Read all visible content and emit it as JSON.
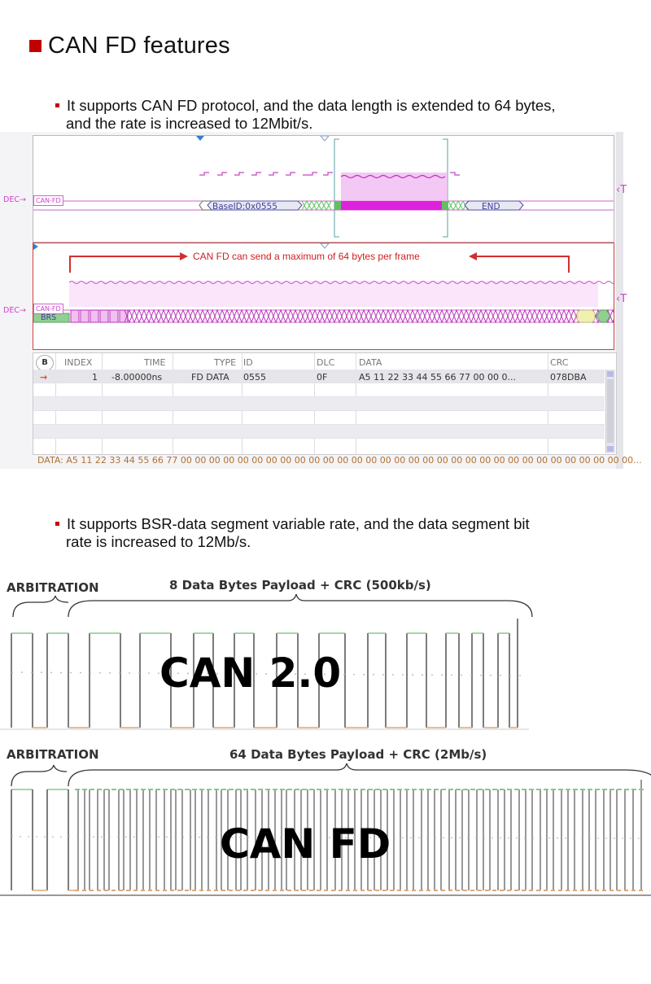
{
  "heading": {
    "title": "CAN FD features"
  },
  "bullets": [
    {
      "line1": "It supports CAN FD protocol, and the data length is extended to 64 bytes,",
      "line2": "and the rate is increased to 12Mbit/s."
    },
    {
      "line1": "It supports BSR-data segment variable rate, and the data segment bit",
      "line2": "rate is increased to 12Mb/s."
    }
  ],
  "scope": {
    "dec_label": "DEC",
    "bus_tag": "CAN-FD",
    "trigger_marker": "T",
    "panel1": {
      "base_id": "BaseID:0x0555",
      "end_label": "END"
    },
    "panel2": {
      "annotation": "CAN FD can send a maximum of 64 bytes per frame",
      "brs_label": "BRS"
    },
    "table": {
      "headers": [
        "INDEX",
        "TIME",
        "TYPE",
        "ID",
        "DLC",
        "DATA",
        "CRC"
      ],
      "row": {
        "index": "1",
        "time": "-8.00000ns",
        "type": "FD DATA",
        "id": "0555",
        "dlc": "0F",
        "data": "A5 11 22 33 44 55 66 77 00 00 0...",
        "crc": "078DBA"
      }
    },
    "data_bar": "DATA: A5 11 22 33 44 55 66 77 00 00 00 00 00 00 00 00 00 00 00 00 00 00 00 00 00 00 00 00 00 00 00 00 00 00 00 00 00 00 00 00..."
  },
  "comparison": {
    "can20": {
      "arbitration": "ARBITRATION",
      "payload": "8 Data Bytes Payload + CRC (500kb/s)",
      "label": "CAN 2.0"
    },
    "canfd": {
      "arbitration": "ARBITRATION",
      "payload": "64 Data Bytes Payload + CRC (2Mb/s)",
      "label": "CAN FD"
    }
  },
  "colors": {
    "accent": "#c00000",
    "magenta": "#cc44cc",
    "green_bits": "#80c080",
    "orange_bits": "#e0a070"
  }
}
